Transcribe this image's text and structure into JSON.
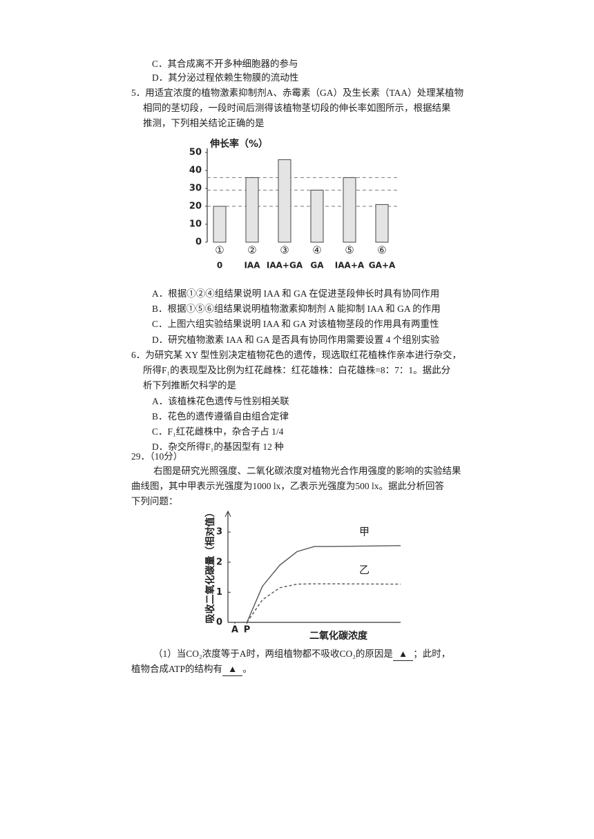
{
  "q4_tail": [
    "C．其合成离不开多种细胞器的参与",
    "D．其分泌过程依赖生物膜的流动性"
  ],
  "q5": {
    "stem": [
      "5．用适宜浓度的植物激素抑制剂A、赤霉素（GA）及生长素（TAA）处理某植物",
      "相同的茎切段，一段时间后测得该植物茎切段的伸长率如图所示，根据结果",
      "推测，下列相关结论正确的是"
    ],
    "options": [
      "A．根据①②④组结果说明 IAA 和 GA 在促进茎段伸长时具有协同作用",
      "B．根据①⑤⑥组结果说明植物激素抑制剂 A 能抑制 IAA 和 GA 的作用",
      "C．上图六组实验结果说明 IAA 和 GA 对该植物茎段的作用具有两重性",
      "D．研究植物激素 IAA 和 GA 是否具有协同作用需要设置 4 个组别实验"
    ]
  },
  "q6": {
    "stem": [
      "6．为研究某 XY 型性别决定植物花色的遗传，现选取红花植株作亲本进行杂交，",
      "所得F₁的表现型及比例为红花雌株：红花雄株：白花雄株=8：7：1。据此分",
      "析下列推断欠科学的是"
    ],
    "options": [
      "A．该植株花色遗传与性别相关联",
      "B．花色的遗传遵循自由组合定律",
      "C．F₁红花雌株中，杂合子占 1/4",
      "D．杂交所得F₁的基因型有 12 种"
    ]
  },
  "q29": {
    "number": "29．（10分）",
    "stem": [
      "右图是研究光照强度、二氧化碳浓度对植物光合作用强度的影响的实验结果",
      "曲线图，其中甲表示光强度为1000 lx，乙表示光强度为500 lx。据此分析回答",
      "下列问题："
    ],
    "sub1": {
      "line1": "（1）当CO₂浓度等于A时，两组植物都不吸收CO₂的原因是",
      "blank1": "▲",
      "after1": "；此时，",
      "line2": "植物合成ATP的结构有",
      "blank2": "▲",
      "after2": "。"
    }
  },
  "chart_data": [
    {
      "type": "bar",
      "y_label": "伸长率（%）",
      "categories": [
        "①",
        "②",
        "③",
        "④",
        "⑤",
        "⑥"
      ],
      "group_labels": [
        "0",
        "IAA",
        "IAA+GA",
        "GA",
        "IAA+A",
        "GA+A"
      ],
      "values": [
        20,
        36,
        46,
        29,
        36,
        21
      ],
      "color": "#e4e4e4",
      "ylim": [
        0,
        50
      ],
      "yticks": [
        0,
        10,
        20,
        30,
        40,
        50
      ],
      "reference_lines": [
        36,
        29,
        20
      ]
    },
    {
      "type": "line",
      "y_label": "吸收二氧化碳量（相对值）",
      "x_label": "二氧化碳浓度",
      "x": [
        1.1,
        2,
        3,
        4,
        5,
        6,
        10
      ],
      "series": [
        {
          "name": "甲",
          "color": "#555555",
          "dashed": false,
          "values": [
            0,
            1.2,
            1.9,
            2.35,
            2.52,
            2.52,
            2.55
          ]
        },
        {
          "name": "乙",
          "color": "#555555",
          "dashed": true,
          "values": [
            0,
            0.75,
            1.15,
            1.27,
            1.28,
            1.28,
            1.27
          ]
        }
      ],
      "xlim": [
        0,
        10
      ],
      "xticks": [
        {
          "value": 0.4,
          "label": "A"
        },
        {
          "value": 1.1,
          "label": "P"
        }
      ],
      "ylim": [
        0,
        3.6
      ],
      "yticks": [
        0,
        1,
        2,
        3
      ]
    }
  ]
}
